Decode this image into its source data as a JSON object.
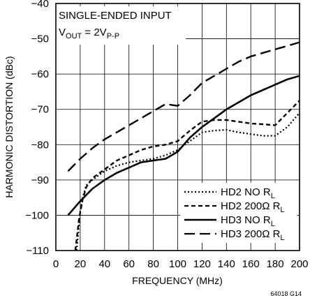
{
  "chart_data": {
    "type": "line",
    "xlabel": "FREQUENCY (MHz)",
    "ylabel": "HARMONIC DISTORTION (dBc)",
    "xlim": [
      0,
      200
    ],
    "ylim": [
      -110,
      -40
    ],
    "x_ticks": [
      "0",
      "20",
      "40",
      "60",
      "80",
      "100",
      "120",
      "140",
      "160",
      "180",
      "200"
    ],
    "y_ticks": [
      "−40",
      "−50",
      "−60",
      "−70",
      "−80",
      "−90",
      "−100",
      "−110"
    ],
    "grid": true,
    "annotation": {
      "line1": "SINGLE-ENDED INPUT",
      "line2_main": "V",
      "line2_sub": "OUT",
      "line2_rest": " = 2V",
      "line2_sub2": "P-P"
    },
    "figure_id": "64018 G14",
    "legend_placement": "bottom-right",
    "series": [
      {
        "name": "HD2 NO R",
        "name_sub": "L",
        "dash": "dotted",
        "points": [
          [
            17,
            -110
          ],
          [
            20,
            -99
          ],
          [
            22,
            -95
          ],
          [
            25,
            -91.5
          ],
          [
            30,
            -90
          ],
          [
            40,
            -87.5
          ],
          [
            50,
            -86
          ],
          [
            60,
            -85
          ],
          [
            70,
            -84.5
          ],
          [
            80,
            -84
          ],
          [
            90,
            -83
          ],
          [
            100,
            -81.5
          ],
          [
            110,
            -79
          ],
          [
            120,
            -76.5
          ],
          [
            130,
            -76
          ],
          [
            140,
            -75.8
          ],
          [
            150,
            -76.5
          ],
          [
            160,
            -77
          ],
          [
            170,
            -77.5
          ],
          [
            180,
            -77.5
          ],
          [
            190,
            -75
          ],
          [
            200,
            -71
          ]
        ]
      },
      {
        "name": "HD2 200Ω R",
        "name_sub": "L",
        "dash": "dashed",
        "points": [
          [
            16,
            -110
          ],
          [
            19,
            -101
          ],
          [
            22,
            -95.5
          ],
          [
            25,
            -92
          ],
          [
            30,
            -89.5
          ],
          [
            40,
            -87
          ],
          [
            50,
            -84.5
          ],
          [
            60,
            -83
          ],
          [
            70,
            -81.5
          ],
          [
            80,
            -80.5
          ],
          [
            90,
            -80
          ],
          [
            100,
            -79
          ],
          [
            110,
            -76
          ],
          [
            120,
            -73.5
          ],
          [
            130,
            -73
          ],
          [
            140,
            -73
          ],
          [
            150,
            -73.5
          ],
          [
            160,
            -74
          ],
          [
            170,
            -74.2
          ],
          [
            180,
            -74.5
          ],
          [
            190,
            -71
          ],
          [
            200,
            -67.5
          ]
        ]
      },
      {
        "name": "HD3 NO R",
        "name_sub": "L",
        "dash": "solid",
        "points": [
          [
            10,
            -100
          ],
          [
            20,
            -96
          ],
          [
            30,
            -92.5
          ],
          [
            40,
            -90
          ],
          [
            50,
            -88
          ],
          [
            60,
            -86.5
          ],
          [
            70,
            -85
          ],
          [
            80,
            -84.5
          ],
          [
            90,
            -84
          ],
          [
            100,
            -82
          ],
          [
            110,
            -78
          ],
          [
            120,
            -75
          ],
          [
            130,
            -72.5
          ],
          [
            140,
            -70
          ],
          [
            150,
            -68
          ],
          [
            160,
            -66
          ],
          [
            170,
            -64.5
          ],
          [
            180,
            -63
          ],
          [
            190,
            -61.5
          ],
          [
            200,
            -60.5
          ]
        ]
      },
      {
        "name": "HD3 200Ω R",
        "name_sub": "L",
        "dash": "longdash",
        "points": [
          [
            10,
            -87.5
          ],
          [
            20,
            -84
          ],
          [
            30,
            -81
          ],
          [
            40,
            -78.5
          ],
          [
            50,
            -76.5
          ],
          [
            60,
            -74.5
          ],
          [
            70,
            -72.5
          ],
          [
            80,
            -70.5
          ],
          [
            90,
            -68.5
          ],
          [
            100,
            -69
          ],
          [
            110,
            -66
          ],
          [
            120,
            -62.5
          ],
          [
            130,
            -60.5
          ],
          [
            140,
            -58.5
          ],
          [
            150,
            -56.5
          ],
          [
            160,
            -55
          ],
          [
            170,
            -54
          ],
          [
            180,
            -53
          ],
          [
            190,
            -52
          ],
          [
            200,
            -51
          ]
        ]
      }
    ]
  }
}
